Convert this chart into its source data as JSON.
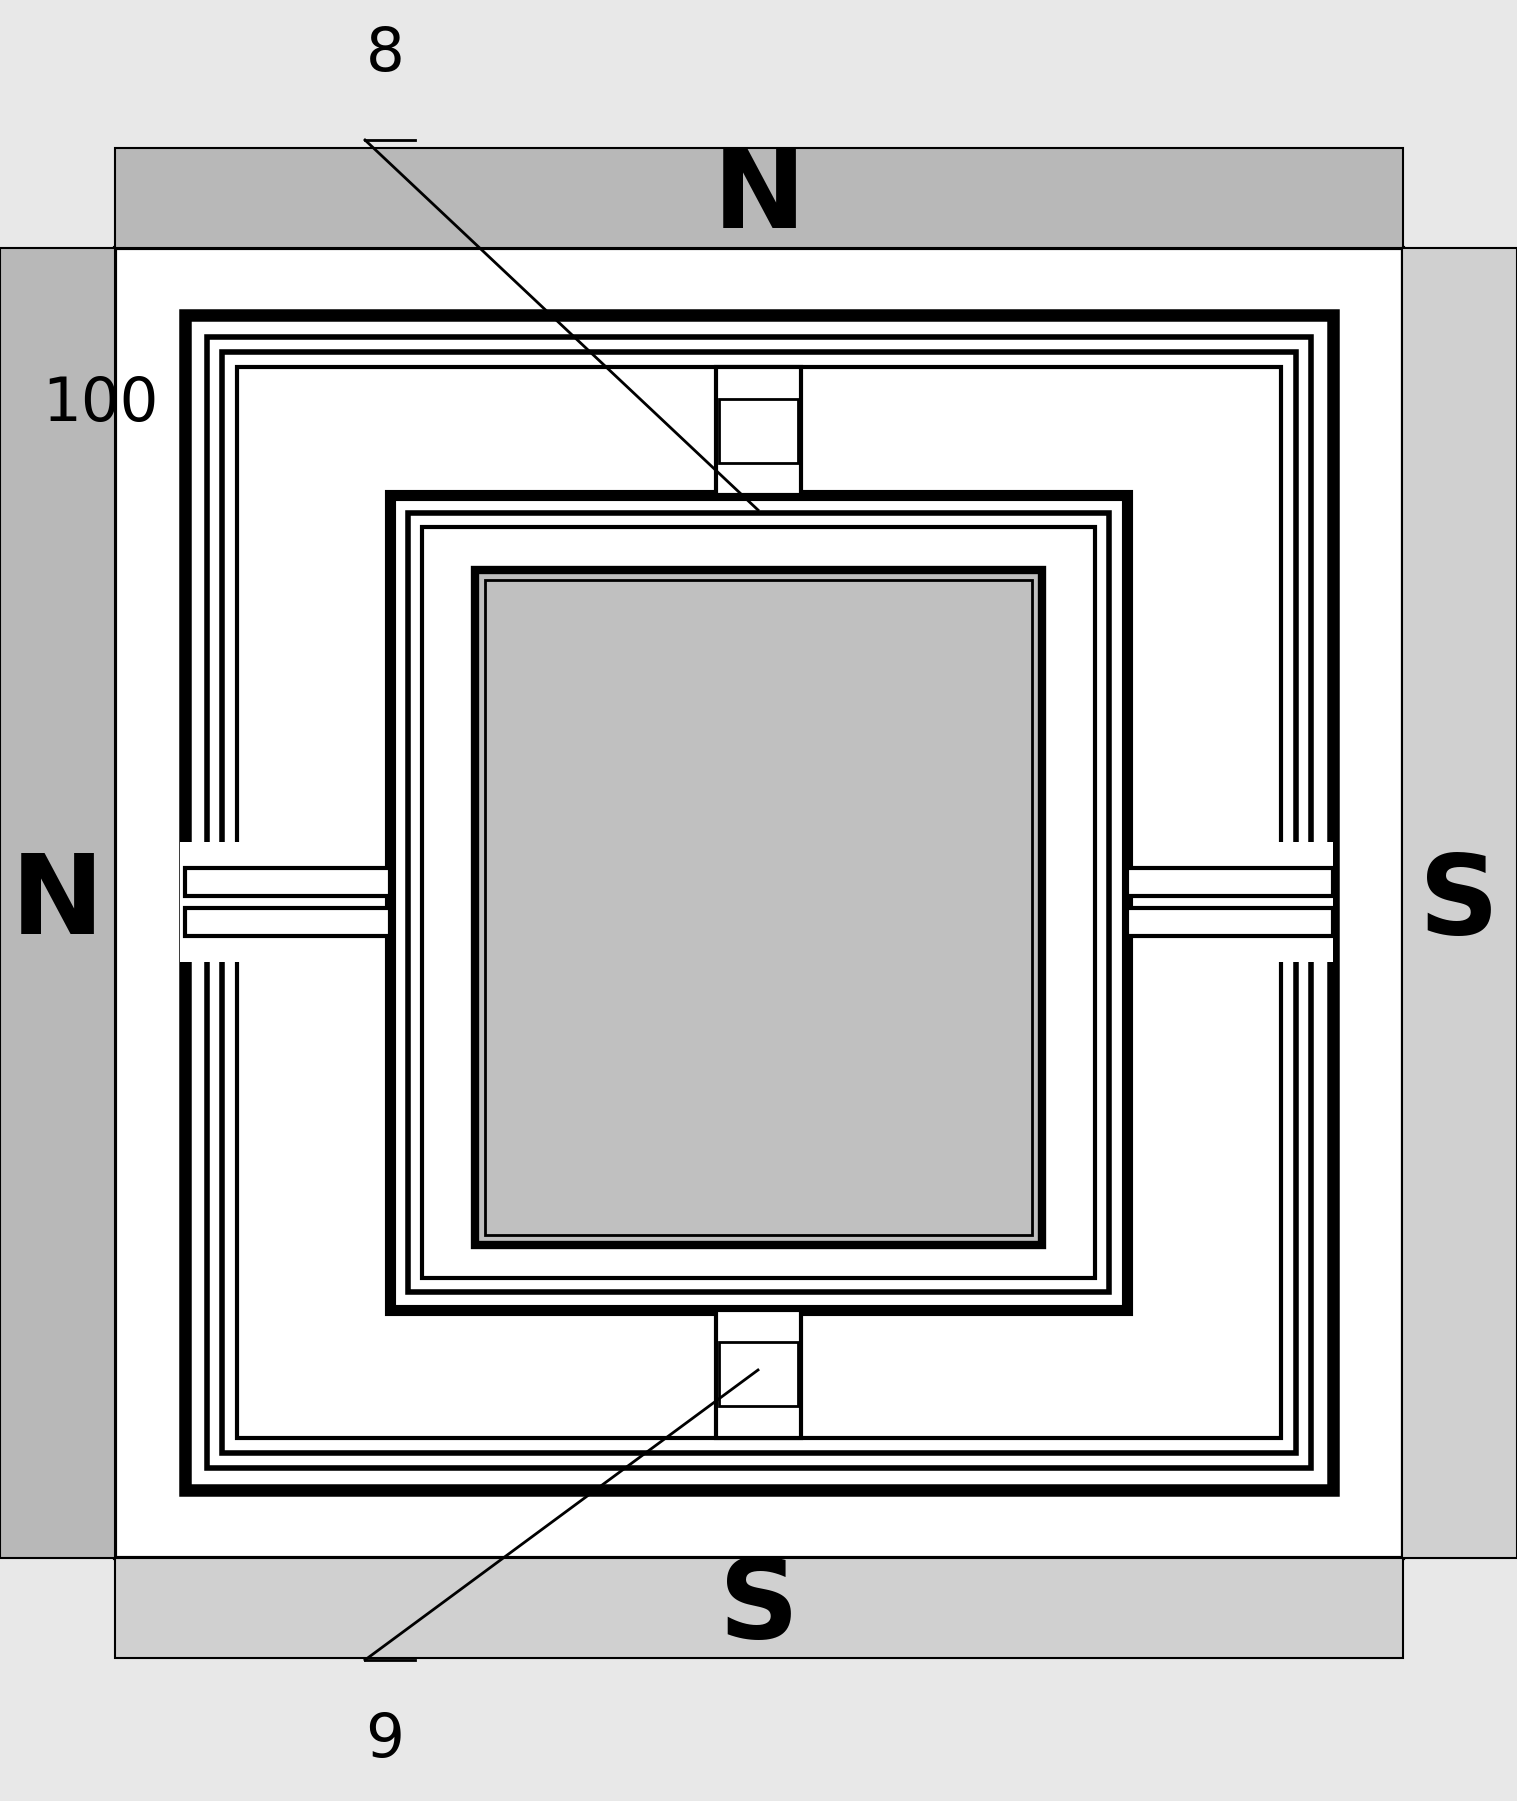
{
  "bg_color": "#e8e8e8",
  "white": "#ffffff",
  "gray_magnet_N": "#b8b8b8",
  "gray_magnet_S": "#d0d0d0",
  "black": "#000000",
  "mirror_color": "#c0c0c0",
  "N_top_label": "N",
  "S_bottom_label": "S",
  "N_left_label": "N",
  "S_right_label": "S",
  "label_8": "8",
  "label_9": "9",
  "label_100": "100",
  "fig_width": 15.17,
  "fig_height": 18.01
}
